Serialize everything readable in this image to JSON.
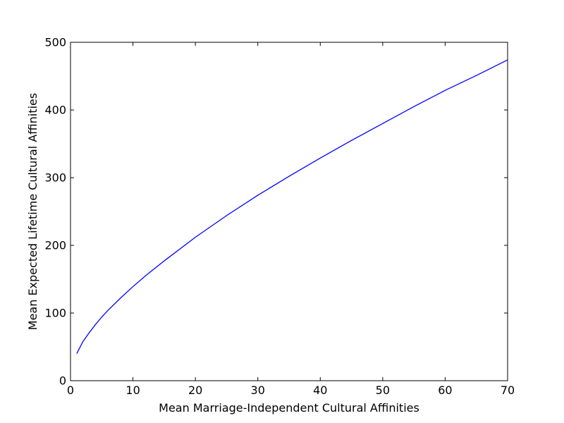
{
  "chart_data": {
    "type": "line",
    "title": "",
    "xlabel": "Mean Marriage-Independent Cultural Affinities",
    "ylabel": "Mean Expected Lifetime Cultural Affinities",
    "xlim": [
      0,
      70
    ],
    "ylim": [
      0,
      500
    ],
    "xticks": [
      0,
      10,
      20,
      30,
      40,
      50,
      60,
      70
    ],
    "yticks": [
      0,
      100,
      200,
      300,
      400,
      500
    ],
    "x_tick_labels": [
      "0",
      "10",
      "20",
      "30",
      "40",
      "50",
      "60",
      "70"
    ],
    "y_tick_labels": [
      "0",
      "100",
      "200",
      "300",
      "400",
      "500"
    ],
    "grid": false,
    "series": [
      {
        "color": "#0000ff",
        "x": [
          1,
          2,
          3,
          4,
          5,
          6,
          8,
          10,
          12,
          15,
          20,
          25,
          30,
          35,
          40,
          45,
          50,
          55,
          60,
          65,
          70
        ],
        "y": [
          40,
          58,
          71,
          83,
          94,
          104,
          122,
          139,
          155,
          177,
          212,
          244,
          274,
          302,
          329,
          355,
          380,
          405,
          429,
          451,
          474
        ]
      }
    ]
  }
}
